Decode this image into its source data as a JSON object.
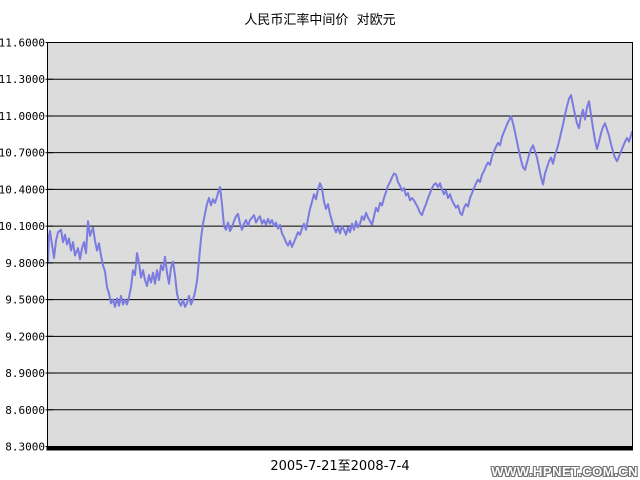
{
  "page": {
    "title": "人民币汇率中间价  对欧元",
    "x_axis_label": "2005-7-21至2008-7-4",
    "watermark": "WWW.HPNET.COM.CN"
  },
  "chart_data": {
    "type": "line",
    "title": "人民币汇率中间价 对欧元",
    "xlabel": "2005-7-21至2008-7-4",
    "period": {
      "start": "2005-7-21",
      "end": "2008-7-4"
    },
    "ylim": [
      8.3,
      11.6
    ],
    "ytick_step": 0.3,
    "ytick_labels": [
      "11.6000",
      "11.3000",
      "11.0000",
      "10.7000",
      "10.4000",
      "10.1000",
      "9.8000",
      "9.5000",
      "9.2000",
      "8.9000",
      "8.6000",
      "8.3000"
    ],
    "grid": true,
    "legend_position": "none",
    "colors": {
      "line": "#7b7be0",
      "plot_bg": "#dcdcdc",
      "grid": "#000000",
      "frame": "#000000",
      "axis_bar": "#000000",
      "page_bg": "#ffffff"
    },
    "series": [
      {
        "name": "对欧元",
        "points": [
          [
            48,
            9.8
          ],
          [
            49,
            10.02
          ],
          [
            50,
            10.06
          ],
          [
            52,
            9.95
          ],
          [
            54,
            9.84
          ],
          [
            56,
            9.98
          ],
          [
            58,
            10.05
          ],
          [
            61,
            10.07
          ],
          [
            63,
            9.97
          ],
          [
            65,
            10.03
          ],
          [
            67,
            9.95
          ],
          [
            69,
            10.0
          ],
          [
            71,
            9.9
          ],
          [
            73,
            9.97
          ],
          [
            75,
            9.86
          ],
          [
            78,
            9.92
          ],
          [
            80,
            9.83
          ],
          [
            82,
            9.92
          ],
          [
            84,
            9.97
          ],
          [
            86,
            9.88
          ],
          [
            88,
            10.14
          ],
          [
            90,
            10.02
          ],
          [
            93,
            10.09
          ],
          [
            95,
            9.98
          ],
          [
            97,
            9.9
          ],
          [
            99,
            9.96
          ],
          [
            101,
            9.86
          ],
          [
            103,
            9.78
          ],
          [
            105,
            9.73
          ],
          [
            107,
            9.6
          ],
          [
            109,
            9.55
          ],
          [
            111,
            9.47
          ],
          [
            113,
            9.5
          ],
          [
            115,
            9.44
          ],
          [
            117,
            9.51
          ],
          [
            119,
            9.45
          ],
          [
            121,
            9.53
          ],
          [
            123,
            9.46
          ],
          [
            125,
            9.5
          ],
          [
            127,
            9.46
          ],
          [
            129,
            9.52
          ],
          [
            131,
            9.6
          ],
          [
            133,
            9.74
          ],
          [
            135,
            9.7
          ],
          [
            137,
            9.88
          ],
          [
            139,
            9.8
          ],
          [
            141,
            9.68
          ],
          [
            143,
            9.74
          ],
          [
            145,
            9.66
          ],
          [
            147,
            9.61
          ],
          [
            149,
            9.7
          ],
          [
            151,
            9.64
          ],
          [
            153,
            9.72
          ],
          [
            155,
            9.63
          ],
          [
            157,
            9.74
          ],
          [
            159,
            9.66
          ],
          [
            161,
            9.78
          ],
          [
            163,
            9.74
          ],
          [
            165,
            9.85
          ],
          [
            167,
            9.72
          ],
          [
            169,
            9.63
          ],
          [
            171,
            9.76
          ],
          [
            173,
            9.81
          ],
          [
            175,
            9.7
          ],
          [
            177,
            9.55
          ],
          [
            179,
            9.48
          ],
          [
            181,
            9.45
          ],
          [
            183,
            9.5
          ],
          [
            185,
            9.44
          ],
          [
            187,
            9.47
          ],
          [
            189,
            9.53
          ],
          [
            191,
            9.46
          ],
          [
            193,
            9.5
          ],
          [
            195,
            9.56
          ],
          [
            197,
            9.65
          ],
          [
            199,
            9.82
          ],
          [
            201,
            10.0
          ],
          [
            203,
            10.12
          ],
          [
            205,
            10.2
          ],
          [
            207,
            10.28
          ],
          [
            209,
            10.33
          ],
          [
            211,
            10.27
          ],
          [
            213,
            10.32
          ],
          [
            215,
            10.29
          ],
          [
            217,
            10.34
          ],
          [
            219,
            10.4
          ],
          [
            220,
            10.42
          ],
          [
            222,
            10.28
          ],
          [
            224,
            10.1
          ],
          [
            226,
            10.07
          ],
          [
            228,
            10.13
          ],
          [
            230,
            10.06
          ],
          [
            232,
            10.09
          ],
          [
            234,
            10.14
          ],
          [
            236,
            10.18
          ],
          [
            238,
            10.2
          ],
          [
            240,
            10.12
          ],
          [
            242,
            10.07
          ],
          [
            244,
            10.12
          ],
          [
            246,
            10.15
          ],
          [
            248,
            10.1
          ],
          [
            250,
            10.15
          ],
          [
            252,
            10.17
          ],
          [
            254,
            10.19
          ],
          [
            256,
            10.13
          ],
          [
            258,
            10.16
          ],
          [
            260,
            10.18
          ],
          [
            262,
            10.12
          ],
          [
            264,
            10.15
          ],
          [
            266,
            10.11
          ],
          [
            268,
            10.16
          ],
          [
            270,
            10.12
          ],
          [
            272,
            10.15
          ],
          [
            274,
            10.1
          ],
          [
            276,
            10.13
          ],
          [
            278,
            10.08
          ],
          [
            280,
            10.11
          ],
          [
            282,
            10.04
          ],
          [
            284,
            10.01
          ],
          [
            286,
            9.97
          ],
          [
            288,
            9.94
          ],
          [
            290,
            9.98
          ],
          [
            292,
            9.93
          ],
          [
            294,
            9.97
          ],
          [
            296,
            10.01
          ],
          [
            298,
            10.05
          ],
          [
            300,
            10.03
          ],
          [
            302,
            10.08
          ],
          [
            304,
            10.12
          ],
          [
            306,
            10.07
          ],
          [
            308,
            10.16
          ],
          [
            310,
            10.24
          ],
          [
            312,
            10.3
          ],
          [
            314,
            10.36
          ],
          [
            316,
            10.32
          ],
          [
            318,
            10.4
          ],
          [
            320,
            10.45
          ],
          [
            322,
            10.41
          ],
          [
            324,
            10.3
          ],
          [
            326,
            10.24
          ],
          [
            328,
            10.28
          ],
          [
            330,
            10.2
          ],
          [
            332,
            10.14
          ],
          [
            334,
            10.09
          ],
          [
            336,
            10.05
          ],
          [
            338,
            10.09
          ],
          [
            340,
            10.04
          ],
          [
            342,
            10.1
          ],
          [
            344,
            10.07
          ],
          [
            346,
            10.03
          ],
          [
            348,
            10.09
          ],
          [
            350,
            10.05
          ],
          [
            352,
            10.12
          ],
          [
            354,
            10.07
          ],
          [
            356,
            10.14
          ],
          [
            358,
            10.09
          ],
          [
            360,
            10.12
          ],
          [
            362,
            10.18
          ],
          [
            364,
            10.15
          ],
          [
            366,
            10.21
          ],
          [
            368,
            10.17
          ],
          [
            370,
            10.14
          ],
          [
            372,
            10.11
          ],
          [
            374,
            10.18
          ],
          [
            376,
            10.25
          ],
          [
            378,
            10.22
          ],
          [
            380,
            10.29
          ],
          [
            382,
            10.27
          ],
          [
            384,
            10.33
          ],
          [
            386,
            10.38
          ],
          [
            388,
            10.43
          ],
          [
            390,
            10.46
          ],
          [
            392,
            10.5
          ],
          [
            394,
            10.53
          ],
          [
            396,
            10.52
          ],
          [
            398,
            10.46
          ],
          [
            400,
            10.43
          ],
          [
            402,
            10.39
          ],
          [
            404,
            10.41
          ],
          [
            406,
            10.35
          ],
          [
            408,
            10.37
          ],
          [
            410,
            10.31
          ],
          [
            412,
            10.33
          ],
          [
            414,
            10.31
          ],
          [
            416,
            10.28
          ],
          [
            418,
            10.25
          ],
          [
            420,
            10.21
          ],
          [
            422,
            10.19
          ],
          [
            424,
            10.24
          ],
          [
            426,
            10.28
          ],
          [
            428,
            10.33
          ],
          [
            430,
            10.37
          ],
          [
            432,
            10.41
          ],
          [
            434,
            10.44
          ],
          [
            436,
            10.45
          ],
          [
            438,
            10.42
          ],
          [
            440,
            10.45
          ],
          [
            442,
            10.4
          ],
          [
            444,
            10.36
          ],
          [
            446,
            10.39
          ],
          [
            448,
            10.33
          ],
          [
            450,
            10.36
          ],
          [
            452,
            10.31
          ],
          [
            454,
            10.28
          ],
          [
            456,
            10.25
          ],
          [
            458,
            10.27
          ],
          [
            460,
            10.21
          ],
          [
            462,
            10.19
          ],
          [
            464,
            10.25
          ],
          [
            466,
            10.28
          ],
          [
            468,
            10.26
          ],
          [
            470,
            10.33
          ],
          [
            472,
            10.37
          ],
          [
            474,
            10.41
          ],
          [
            476,
            10.45
          ],
          [
            478,
            10.48
          ],
          [
            480,
            10.46
          ],
          [
            482,
            10.52
          ],
          [
            484,
            10.55
          ],
          [
            486,
            10.59
          ],
          [
            488,
            10.62
          ],
          [
            490,
            10.6
          ],
          [
            492,
            10.67
          ],
          [
            494,
            10.71
          ],
          [
            496,
            10.75
          ],
          [
            498,
            10.78
          ],
          [
            500,
            10.76
          ],
          [
            502,
            10.83
          ],
          [
            504,
            10.87
          ],
          [
            506,
            10.91
          ],
          [
            508,
            10.95
          ],
          [
            510,
            10.98
          ],
          [
            511,
            11.0
          ],
          [
            513,
            10.94
          ],
          [
            515,
            10.87
          ],
          [
            517,
            10.79
          ],
          [
            519,
            10.71
          ],
          [
            521,
            10.64
          ],
          [
            523,
            10.58
          ],
          [
            525,
            10.56
          ],
          [
            527,
            10.62
          ],
          [
            529,
            10.68
          ],
          [
            531,
            10.73
          ],
          [
            533,
            10.76
          ],
          [
            535,
            10.71
          ],
          [
            537,
            10.66
          ],
          [
            539,
            10.58
          ],
          [
            541,
            10.5
          ],
          [
            543,
            10.44
          ],
          [
            545,
            10.53
          ],
          [
            547,
            10.58
          ],
          [
            549,
            10.63
          ],
          [
            551,
            10.66
          ],
          [
            553,
            10.61
          ],
          [
            555,
            10.68
          ],
          [
            557,
            10.73
          ],
          [
            559,
            10.79
          ],
          [
            561,
            10.86
          ],
          [
            563,
            10.93
          ],
          [
            565,
            11.01
          ],
          [
            567,
            11.08
          ],
          [
            569,
            11.14
          ],
          [
            571,
            11.17
          ],
          [
            573,
            11.09
          ],
          [
            575,
            11.01
          ],
          [
            577,
            10.94
          ],
          [
            579,
            10.9
          ],
          [
            581,
            11.0
          ],
          [
            583,
            11.05
          ],
          [
            585,
            10.97
          ],
          [
            587,
            11.07
          ],
          [
            589,
            11.12
          ],
          [
            591,
            11.01
          ],
          [
            593,
            10.9
          ],
          [
            595,
            10.8
          ],
          [
            597,
            10.73
          ],
          [
            599,
            10.79
          ],
          [
            601,
            10.86
          ],
          [
            603,
            10.91
          ],
          [
            605,
            10.94
          ],
          [
            607,
            10.89
          ],
          [
            609,
            10.84
          ],
          [
            611,
            10.77
          ],
          [
            613,
            10.71
          ],
          [
            615,
            10.66
          ],
          [
            617,
            10.63
          ],
          [
            619,
            10.67
          ],
          [
            621,
            10.71
          ],
          [
            623,
            10.75
          ],
          [
            625,
            10.79
          ],
          [
            627,
            10.82
          ],
          [
            629,
            10.79
          ],
          [
            631,
            10.84
          ],
          [
            633,
            10.87
          ]
        ]
      }
    ]
  }
}
